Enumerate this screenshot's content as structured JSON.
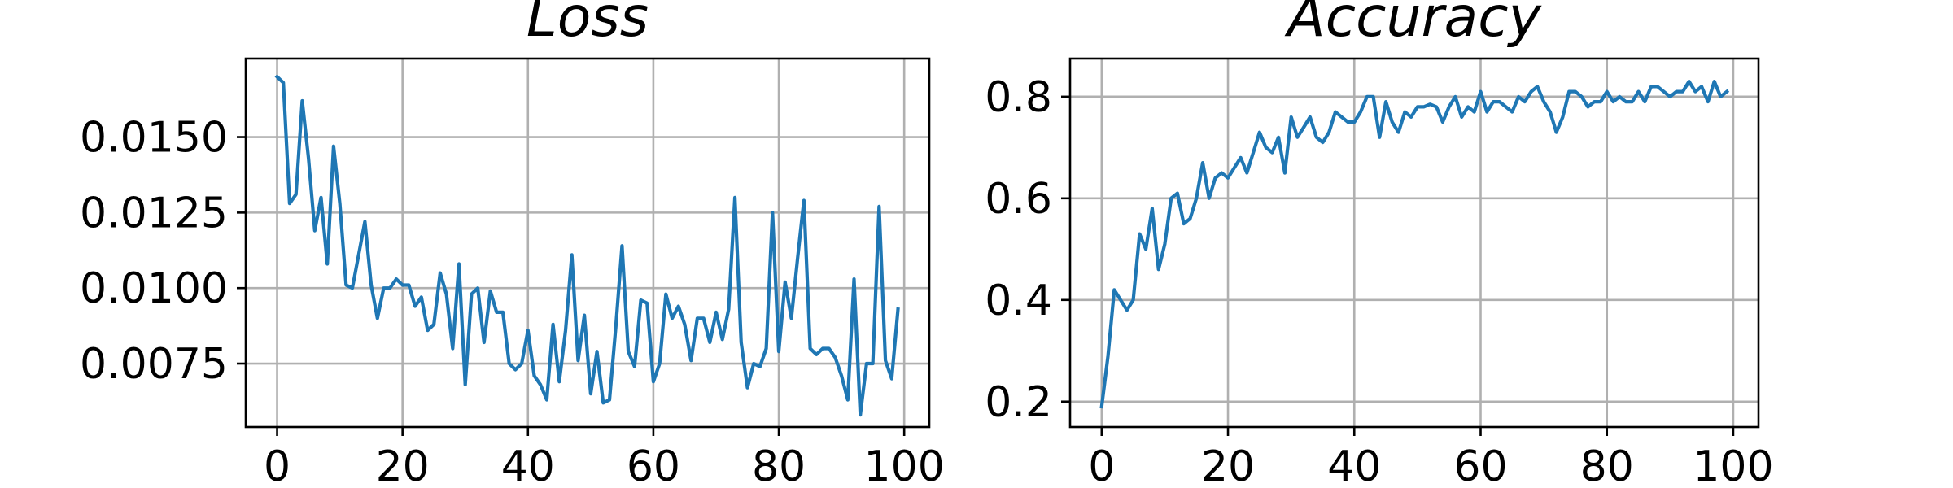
{
  "chart_data": [
    {
      "type": "line",
      "title": "Loss",
      "xlabel": "",
      "ylabel": "",
      "grid": true,
      "xlim": [
        -5,
        104
      ],
      "ylim": [
        0.0054,
        0.0176
      ],
      "xticks": [
        "0",
        "20",
        "40",
        "60",
        "80",
        "100"
      ],
      "xtick_values": [
        0,
        20,
        40,
        60,
        80,
        100
      ],
      "yticks": [
        "0.0075",
        "0.0100",
        "0.0125",
        "0.0150"
      ],
      "ytick_values": [
        0.0075,
        0.01,
        0.0125,
        0.015
      ],
      "colors": {
        "series": "#1f77b4"
      },
      "series": [
        {
          "x": [
            0,
            1,
            2,
            3,
            4,
            5,
            6,
            7,
            8,
            9,
            10,
            11,
            12,
            13,
            14,
            15,
            16,
            17,
            18,
            19,
            20,
            21,
            22,
            23,
            24,
            25,
            26,
            27,
            28,
            29,
            30,
            31,
            32,
            33,
            34,
            35,
            36,
            37,
            38,
            39,
            40,
            41,
            42,
            43,
            44,
            45,
            46,
            47,
            48,
            49,
            50,
            51,
            52,
            53,
            54,
            55,
            56,
            57,
            58,
            59,
            60,
            61,
            62,
            63,
            64,
            65,
            66,
            67,
            68,
            69,
            70,
            71,
            72,
            73,
            74,
            75,
            76,
            77,
            78,
            79,
            80,
            81,
            82,
            83,
            84,
            85,
            86,
            87,
            88,
            89,
            90,
            91,
            92,
            93,
            94,
            95,
            96,
            97,
            98,
            99
          ],
          "values": [
            0.017,
            0.0168,
            0.0128,
            0.0131,
            0.0162,
            0.0143,
            0.0119,
            0.013,
            0.0108,
            0.0147,
            0.0128,
            0.0101,
            0.01,
            0.0111,
            0.0122,
            0.0101,
            0.009,
            0.01,
            0.01,
            0.0103,
            0.0101,
            0.0101,
            0.0094,
            0.0097,
            0.0086,
            0.0088,
            0.0105,
            0.0098,
            0.008,
            0.0108,
            0.0068,
            0.0098,
            0.01,
            0.0082,
            0.0099,
            0.0092,
            0.0092,
            0.0075,
            0.0073,
            0.0075,
            0.0086,
            0.0071,
            0.0068,
            0.0063,
            0.0088,
            0.0069,
            0.0086,
            0.0111,
            0.0076,
            0.0091,
            0.0065,
            0.0079,
            0.0062,
            0.0063,
            0.0087,
            0.0114,
            0.0079,
            0.0074,
            0.0096,
            0.0095,
            0.0069,
            0.0075,
            0.0098,
            0.009,
            0.0094,
            0.0088,
            0.0076,
            0.009,
            0.009,
            0.0082,
            0.0092,
            0.0083,
            0.0093,
            0.013,
            0.0082,
            0.0067,
            0.0075,
            0.0074,
            0.008,
            0.0125,
            0.0079,
            0.0102,
            0.009,
            0.011,
            0.0129,
            0.008,
            0.0078,
            0.008,
            0.008,
            0.0077,
            0.0071,
            0.0063,
            0.0103,
            0.0058,
            0.0075,
            0.0075,
            0.0127,
            0.0076,
            0.007,
            0.0093
          ]
        }
      ]
    },
    {
      "type": "line",
      "title": "Accuracy",
      "xlabel": "",
      "ylabel": "",
      "grid": true,
      "xlim": [
        -5,
        104
      ],
      "ylim": [
        0.15,
        0.875
      ],
      "xticks": [
        "0",
        "20",
        "40",
        "60",
        "80",
        "100"
      ],
      "xtick_values": [
        0,
        20,
        40,
        60,
        80,
        100
      ],
      "yticks": [
        "0.2",
        "0.4",
        "0.6",
        "0.8"
      ],
      "ytick_values": [
        0.2,
        0.4,
        0.6,
        0.8
      ],
      "colors": {
        "series": "#1f77b4"
      },
      "series": [
        {
          "x": [
            0,
            1,
            2,
            3,
            4,
            5,
            6,
            7,
            8,
            9,
            10,
            11,
            12,
            13,
            14,
            15,
            16,
            17,
            18,
            19,
            20,
            21,
            22,
            23,
            24,
            25,
            26,
            27,
            28,
            29,
            30,
            31,
            32,
            33,
            34,
            35,
            36,
            37,
            38,
            39,
            40,
            41,
            42,
            43,
            44,
            45,
            46,
            47,
            48,
            49,
            50,
            51,
            52,
            53,
            54,
            55,
            56,
            57,
            58,
            59,
            60,
            61,
            62,
            63,
            64,
            65,
            66,
            67,
            68,
            69,
            70,
            71,
            72,
            73,
            74,
            75,
            76,
            77,
            78,
            79,
            80,
            81,
            82,
            83,
            84,
            85,
            86,
            87,
            88,
            89,
            90,
            91,
            92,
            93,
            94,
            95,
            96,
            97,
            98,
            99
          ],
          "values": [
            0.19,
            0.29,
            0.42,
            0.4,
            0.38,
            0.4,
            0.53,
            0.5,
            0.58,
            0.46,
            0.51,
            0.6,
            0.61,
            0.55,
            0.56,
            0.6,
            0.67,
            0.6,
            0.64,
            0.65,
            0.64,
            0.66,
            0.68,
            0.65,
            0.69,
            0.73,
            0.7,
            0.69,
            0.72,
            0.65,
            0.76,
            0.72,
            0.74,
            0.76,
            0.72,
            0.71,
            0.73,
            0.77,
            0.76,
            0.75,
            0.75,
            0.77,
            0.8,
            0.8,
            0.72,
            0.79,
            0.75,
            0.73,
            0.77,
            0.76,
            0.78,
            0.78,
            0.785,
            0.78,
            0.75,
            0.78,
            0.8,
            0.76,
            0.78,
            0.77,
            0.81,
            0.77,
            0.79,
            0.79,
            0.78,
            0.77,
            0.8,
            0.79,
            0.81,
            0.82,
            0.79,
            0.77,
            0.73,
            0.76,
            0.81,
            0.81,
            0.8,
            0.78,
            0.79,
            0.79,
            0.81,
            0.79,
            0.8,
            0.79,
            0.79,
            0.81,
            0.79,
            0.82,
            0.82,
            0.81,
            0.8,
            0.81,
            0.81,
            0.83,
            0.81,
            0.82,
            0.79,
            0.83,
            0.8,
            0.81
          ]
        }
      ]
    }
  ]
}
